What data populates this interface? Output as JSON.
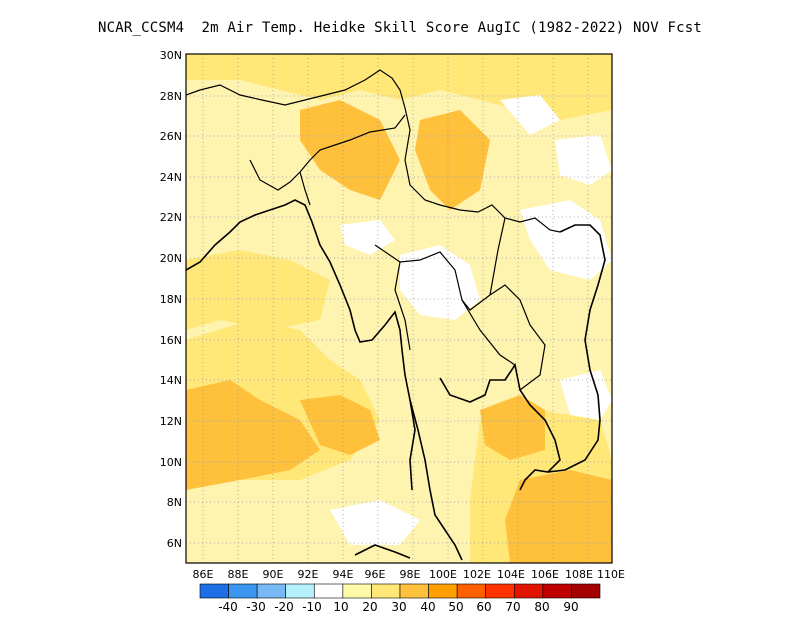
{
  "title": "NCAR_CCSM4  2m Air Temp. Heidke Skill Score AugIC (1982-2022) NOV Fcst",
  "map": {
    "lon_range": [
      86,
      110
    ],
    "lat_range": [
      5,
      30
    ],
    "lon_ticks": [
      "86E",
      "88E",
      "90E",
      "92E",
      "94E",
      "96E",
      "98E",
      "100E",
      "102E",
      "104E",
      "106E",
      "108E",
      "110E"
    ],
    "lat_ticks": [
      "6N",
      "8N",
      "10N",
      "12N",
      "14N",
      "16N",
      "18N",
      "20N",
      "22N",
      "24N",
      "26N",
      "28N",
      "30N"
    ]
  },
  "colorbar": {
    "labels": [
      "-40",
      "-30",
      "-20",
      "-10",
      "10",
      "20",
      "30",
      "40",
      "50",
      "60",
      "70",
      "80",
      "90"
    ],
    "colors": [
      "#1e6fe6",
      "#3c96f0",
      "#78b9f5",
      "#b4f0fa",
      "#ffffff",
      "#fffaaa",
      "#ffe878",
      "#ffc03c",
      "#ffa000",
      "#ff6000",
      "#ff3200",
      "#e11400",
      "#c00000",
      "#a50000"
    ]
  },
  "field": {
    "background": "#fff3b0",
    "regions": [
      {
        "label": "bay_of_bengal_high",
        "color": "#ffc03c"
      },
      {
        "label": "south_china_sea_high",
        "color": "#ffc03c"
      },
      {
        "label": "tibet_moderate",
        "color": "#ffe878"
      },
      {
        "label": "andaman_moderate",
        "color": "#ffe878"
      },
      {
        "label": "laos_thailand_low",
        "color": "#ffffff"
      }
    ]
  }
}
